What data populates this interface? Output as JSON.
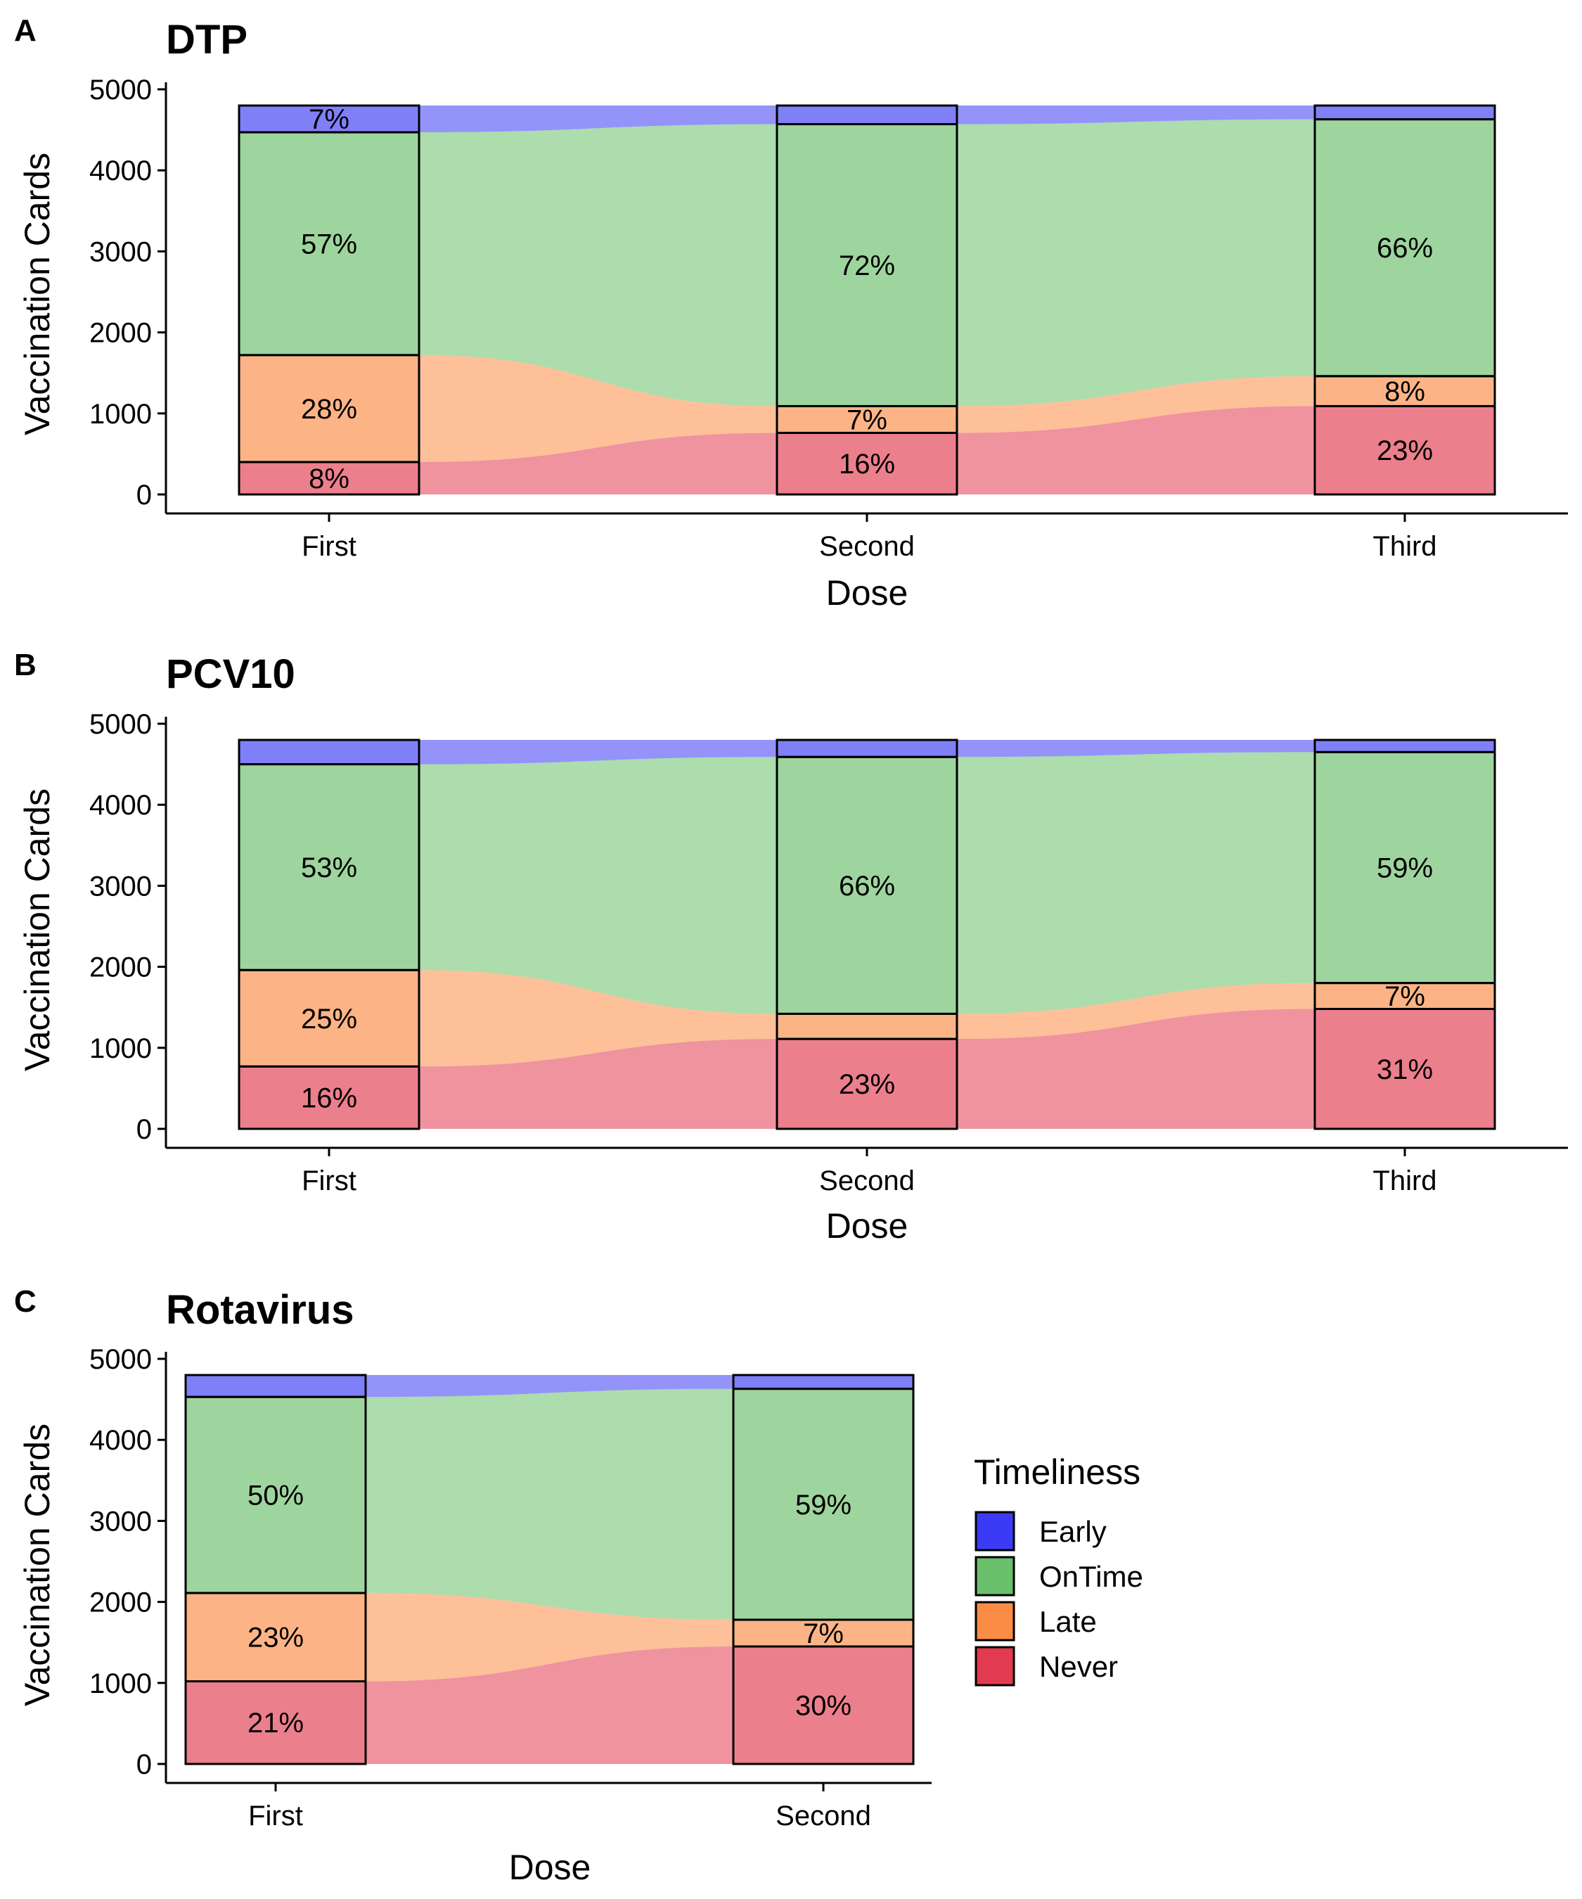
{
  "figure": {
    "legend": {
      "title": "Timeliness",
      "categories": [
        "Early",
        "OnTime",
        "Late",
        "Never"
      ],
      "colors": [
        "#3b3bf5",
        "#6abf6a",
        "#fb8c45",
        "#e23a4e"
      ],
      "placement": "right of panel C"
    }
  },
  "chart_data": [
    {
      "type": "alluvial",
      "panel": "A",
      "title": "DTP",
      "xlabel": "Dose",
      "ylabel": "Vaccination Cards",
      "ylim": [
        0,
        5000
      ],
      "yticks": [
        0,
        1000,
        2000,
        3000,
        4000,
        5000
      ],
      "grid": false,
      "categories": [
        "First",
        "Second",
        "Third"
      ],
      "stacks": [
        {
          "Never": 400,
          "Late": 1320,
          "OnTime": 2750,
          "Early": 330
        },
        {
          "Never": 760,
          "Late": 330,
          "OnTime": 3480,
          "Early": 230
        },
        {
          "Never": 1090,
          "Late": 370,
          "OnTime": 3170,
          "Early": 170
        }
      ],
      "labels": [
        {
          "Never": "8%",
          "Late": "28%",
          "OnTime": "57%",
          "Early": "7%"
        },
        {
          "Never": "16%",
          "Late": "7%",
          "OnTime": "72%",
          "Early": ""
        },
        {
          "Never": "23%",
          "Late": "8%",
          "OnTime": "66%",
          "Early": ""
        }
      ]
    },
    {
      "type": "alluvial",
      "panel": "B",
      "title": "PCV10",
      "xlabel": "Dose",
      "ylabel": "Vaccination Cards",
      "ylim": [
        0,
        5000
      ],
      "yticks": [
        0,
        1000,
        2000,
        3000,
        4000,
        5000
      ],
      "grid": false,
      "categories": [
        "First",
        "Second",
        "Third"
      ],
      "stacks": [
        {
          "Never": 770,
          "Late": 1190,
          "OnTime": 2540,
          "Early": 300
        },
        {
          "Never": 1110,
          "Late": 310,
          "OnTime": 3170,
          "Early": 210
        },
        {
          "Never": 1480,
          "Late": 320,
          "OnTime": 2850,
          "Early": 150
        }
      ],
      "labels": [
        {
          "Never": "16%",
          "Late": "25%",
          "OnTime": "53%",
          "Early": ""
        },
        {
          "Never": "23%",
          "Late": "",
          "OnTime": "66%",
          "Early": ""
        },
        {
          "Never": "31%",
          "Late": "7%",
          "OnTime": "59%",
          "Early": ""
        }
      ]
    },
    {
      "type": "alluvial",
      "panel": "C",
      "title": "Rotavirus",
      "xlabel": "Dose",
      "ylabel": "Vaccination Cards",
      "ylim": [
        0,
        5000
      ],
      "yticks": [
        0,
        1000,
        2000,
        3000,
        4000,
        5000
      ],
      "grid": false,
      "categories": [
        "First",
        "Second"
      ],
      "stacks": [
        {
          "Never": 1020,
          "Late": 1090,
          "OnTime": 2420,
          "Early": 270
        },
        {
          "Never": 1450,
          "Late": 330,
          "OnTime": 2850,
          "Early": 170
        }
      ],
      "labels": [
        {
          "Never": "21%",
          "Late": "23%",
          "OnTime": "50%",
          "Early": ""
        },
        {
          "Never": "30%",
          "Late": "7%",
          "OnTime": "59%",
          "Early": ""
        }
      ]
    }
  ]
}
